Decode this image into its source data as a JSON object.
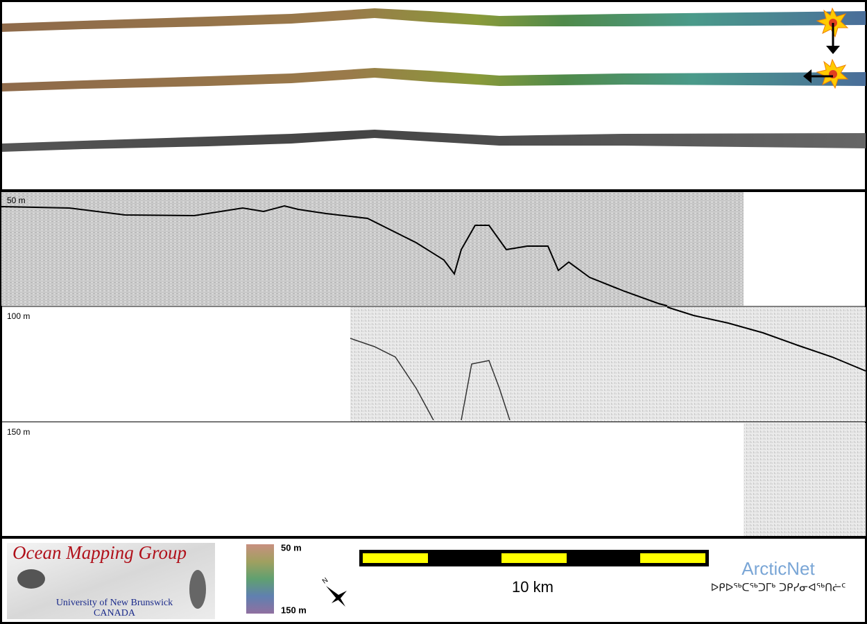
{
  "profile": {
    "depth_labels": [
      "50 m",
      "100 m",
      "150 m"
    ]
  },
  "logo": {
    "title": "Ocean Mapping Group",
    "university": "University of New Brunswick",
    "country": "CANADA"
  },
  "colorbar": {
    "top_label": "50 m",
    "bottom_label": "150 m"
  },
  "scale_bar": {
    "label": "10 km"
  },
  "partner": {
    "name": "ArcticNet",
    "syllabics": "ᐅᑭᐅᖅᑕᖅᑐᒥᒃ ᑐᑭᓯᓂᐊᖅᑎᓖᑦ"
  }
}
